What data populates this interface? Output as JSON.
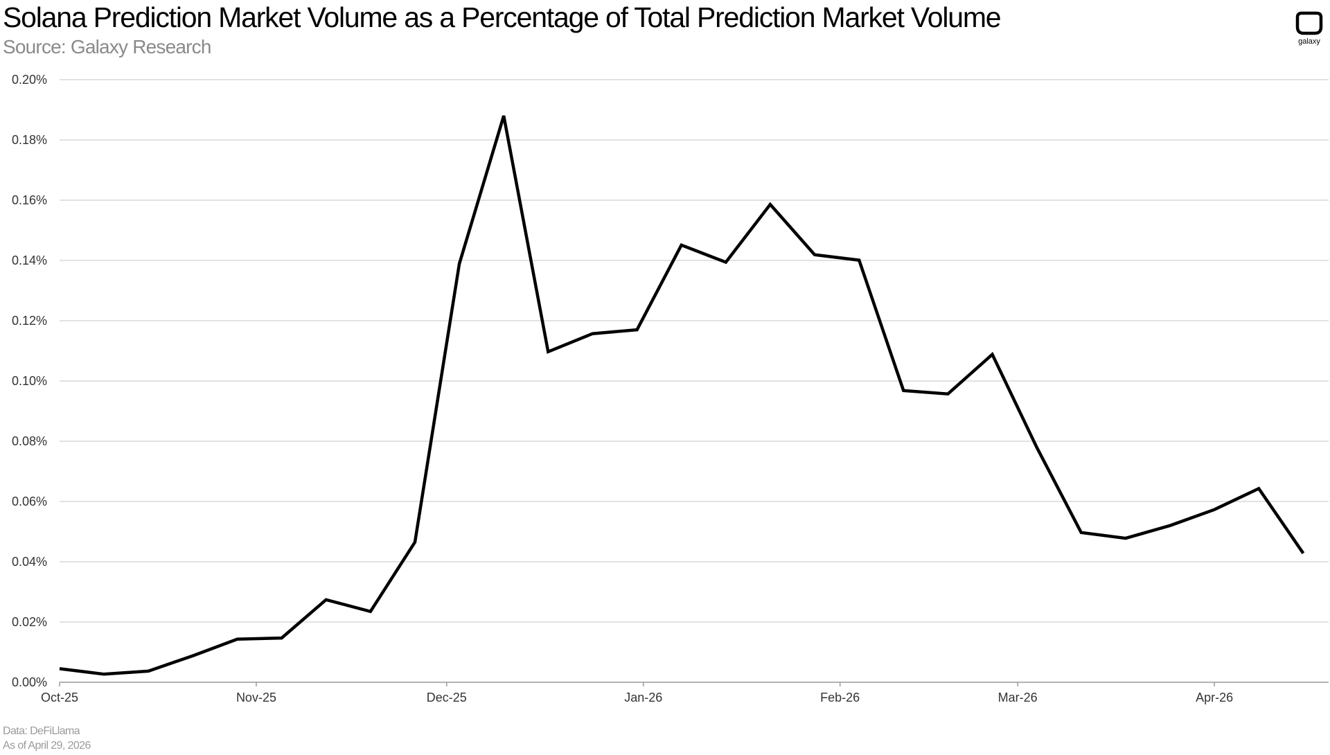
{
  "header": {
    "title": "Solana Prediction Market Volume as a Percentage of Total Prediction Market Volume",
    "subtitle": "Source: Galaxy Research",
    "logo_text": "galaxy"
  },
  "footer": {
    "data_source": "Data: DeFiLlama",
    "as_of": "As of April 29, 2026"
  },
  "colors": {
    "line": "#000000",
    "grid": "#d0d0d0",
    "axis": "#999999",
    "tick_text": "#333333"
  },
  "chart_data": {
    "type": "line",
    "title": "Solana Prediction Market Volume as a Percentage of Total Prediction Market Volume",
    "xlabel": "",
    "ylabel": "",
    "ylim": [
      0,
      0.2
    ],
    "yticks": [
      "0.00%",
      "0.02%",
      "0.04%",
      "0.06%",
      "0.08%",
      "0.10%",
      "0.12%",
      "0.14%",
      "0.16%",
      "0.18%",
      "0.20%"
    ],
    "xticks": [
      "Oct-25",
      "Nov-25",
      "Dec-25",
      "Jan-26",
      "Feb-26",
      "Mar-26",
      "Apr-26"
    ],
    "x": [
      "2025-10-01",
      "2025-10-08",
      "2025-10-15",
      "2025-10-22",
      "2025-10-29",
      "2025-11-05",
      "2025-11-12",
      "2025-11-19",
      "2025-11-26",
      "2025-12-03",
      "2025-12-10",
      "2025-12-17",
      "2025-12-24",
      "2025-12-31",
      "2026-01-07",
      "2026-01-14",
      "2026-01-21",
      "2026-01-28",
      "2026-02-04",
      "2026-02-11",
      "2026-02-18",
      "2026-02-25",
      "2026-03-04",
      "2026-03-11",
      "2026-03-18",
      "2026-03-25",
      "2026-04-01",
      "2026-04-08",
      "2026-04-15"
    ],
    "values": [
      0.0045,
      0.0027,
      0.0037,
      0.0088,
      0.0143,
      0.0147,
      0.0274,
      0.0235,
      0.0465,
      0.1389,
      0.188,
      0.1097,
      0.1157,
      0.117,
      0.1451,
      0.1394,
      0.1586,
      0.1419,
      0.1401,
      0.0968,
      0.0957,
      0.1088,
      0.078,
      0.0497,
      0.0478,
      0.052,
      0.0573,
      0.0643,
      0.0428
    ],
    "grid": true,
    "legend": "none"
  }
}
